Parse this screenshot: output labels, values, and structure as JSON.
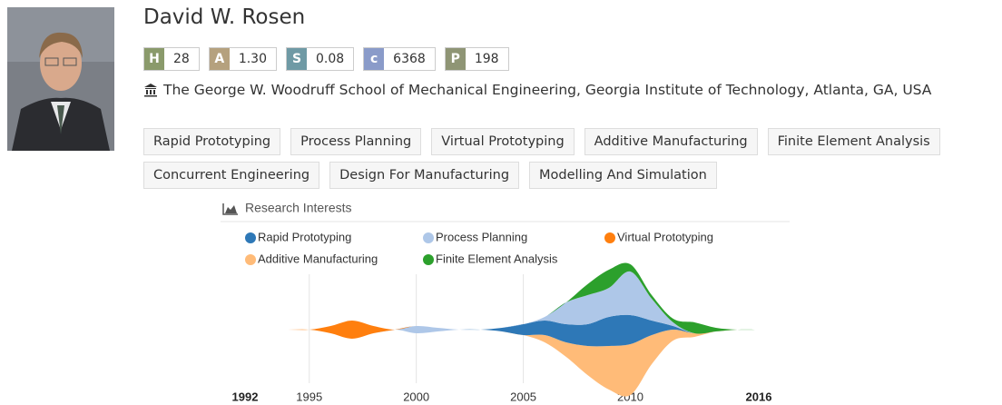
{
  "profile": {
    "name": "David W. Rosen",
    "metrics": [
      {
        "key": "H",
        "value": "28"
      },
      {
        "key": "A",
        "value": "1.30"
      },
      {
        "key": "S",
        "value": "0.08"
      },
      {
        "key": "c",
        "value": "6368"
      },
      {
        "key": "P",
        "value": "198"
      }
    ],
    "affiliation": "The George W. Woodruff School of Mechanical Engineering, Georgia Institute of Technology, Atlanta, GA, USA",
    "tags": [
      "Rapid Prototyping",
      "Process Planning",
      "Virtual Prototyping",
      "Additive Manufacturing",
      "Finite Element Analysis",
      "Concurrent Engineering",
      "Design For Manufacturing",
      "Modelling And Simulation"
    ]
  },
  "chart_data": {
    "type": "stream",
    "title": "Research Interests",
    "x": [
      1992,
      1993,
      1994,
      1995,
      1996,
      1997,
      1998,
      1999,
      2000,
      2001,
      2002,
      2003,
      2004,
      2005,
      2006,
      2007,
      2008,
      2009,
      2010,
      2011,
      2012,
      2013,
      2014,
      2015,
      2016
    ],
    "xlim": [
      1992,
      2016
    ],
    "xticks": [
      1995,
      2000,
      2005,
      2010
    ],
    "series": [
      {
        "name": "Rapid Prototyping",
        "color": "#2e78b7",
        "values": [
          0,
          0,
          0,
          0,
          0,
          0,
          0,
          0,
          0,
          0,
          0,
          0,
          1,
          3,
          4,
          5,
          6,
          8,
          8,
          4,
          1,
          0,
          0,
          0,
          0
        ]
      },
      {
        "name": "Process Planning",
        "color": "#aec7e8",
        "values": [
          0,
          0,
          0,
          0,
          0,
          0,
          0,
          0,
          2,
          1,
          0,
          0,
          0,
          0,
          1,
          6,
          8,
          8,
          12,
          6,
          1,
          0,
          0,
          0,
          0
        ]
      },
      {
        "name": "Virtual Prototyping",
        "color": "#ff7f0e",
        "values": [
          0,
          0,
          0,
          0,
          2,
          5,
          2,
          0,
          0,
          0,
          0,
          0,
          0,
          0,
          0,
          0,
          0,
          0,
          0,
          0,
          0,
          0,
          0,
          0,
          0
        ]
      },
      {
        "name": "Additive Manufacturing",
        "color": "#ffbb78",
        "values": [
          0,
          0,
          0,
          0,
          0,
          0,
          0,
          0,
          0,
          0,
          0,
          0,
          0,
          0,
          2,
          4,
          8,
          12,
          14,
          8,
          3,
          1,
          0,
          0,
          0
        ]
      },
      {
        "name": "Finite Element Analysis",
        "color": "#2ca02c",
        "values": [
          0,
          0,
          0,
          0,
          0,
          0,
          0,
          0,
          0,
          0,
          0,
          0,
          0,
          0,
          0,
          0,
          3,
          5,
          2,
          1,
          1,
          3,
          1,
          0,
          0
        ]
      }
    ]
  }
}
